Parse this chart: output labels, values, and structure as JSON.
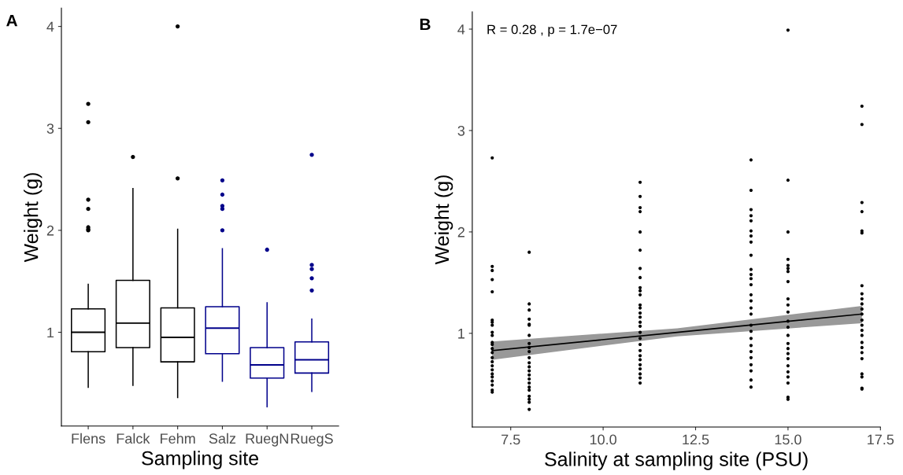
{
  "chart_data": [
    {
      "type": "box",
      "title": "A",
      "xlabel": "Sampling site",
      "ylabel": "Weight (g)",
      "categories": [
        "Flens",
        "Falck",
        "Fehm",
        "Salz",
        "RuegN",
        "RuegS"
      ],
      "colors": [
        "#000000",
        "#000000",
        "#000000",
        "#00008b",
        "#00008b",
        "#00008b"
      ],
      "boxes": [
        {
          "low": 0.46,
          "q1": 0.81,
          "median": 1.0,
          "q3": 1.23,
          "high": 1.47,
          "outliers": [
            3.24,
            3.06,
            2.3,
            2.21,
            2.03,
            2.01,
            2.0
          ]
        },
        {
          "low": 0.48,
          "q1": 0.85,
          "median": 1.09,
          "q3": 1.51,
          "high": 2.41,
          "outliers": [
            2.72
          ]
        },
        {
          "low": 0.36,
          "q1": 0.71,
          "median": 0.95,
          "q3": 1.24,
          "high": 2.01,
          "outliers": [
            4.0,
            2.51
          ]
        },
        {
          "low": 0.52,
          "q1": 0.79,
          "median": 1.04,
          "q3": 1.25,
          "high": 1.82,
          "outliers": [
            2.49,
            2.35,
            2.24,
            2.21,
            2.0
          ]
        },
        {
          "low": 0.27,
          "q1": 0.55,
          "median": 0.68,
          "q3": 0.85,
          "high": 1.29,
          "outliers": [
            1.81
          ]
        },
        {
          "low": 0.42,
          "q1": 0.6,
          "median": 0.73,
          "q3": 0.905,
          "high": 1.13,
          "outliers": [
            2.74,
            1.66,
            1.62,
            1.53,
            1.41
          ]
        }
      ],
      "ylim": [
        0.08,
        4.18
      ],
      "yticks": [
        1,
        2,
        3,
        4
      ],
      "grid": false,
      "legend": false
    },
    {
      "type": "scatter",
      "title": "B",
      "xlabel": "Salinity at sampling site (PSU)",
      "ylabel": "Weight (g)",
      "annotations": [
        "R = 0.28 , p = 1.7e−07"
      ],
      "series": [
        {
          "type": "scatter",
          "color": "#000000",
          "marker": "circle",
          "x": [
            7,
            7,
            7,
            7,
            7,
            7,
            7,
            7,
            7,
            7,
            7,
            7,
            7,
            7,
            7,
            7,
            7,
            7,
            7,
            7,
            7,
            7,
            7,
            7,
            8,
            8,
            8,
            8,
            8,
            8,
            8,
            8,
            8,
            8,
            8,
            8,
            8,
            8,
            8,
            8,
            8,
            8,
            8,
            8,
            8,
            8,
            8,
            11,
            11,
            11,
            11,
            11,
            11,
            11,
            11,
            11,
            11,
            11,
            11,
            11,
            11,
            11,
            11,
            11,
            11,
            11,
            11,
            11,
            11,
            11,
            11,
            11,
            11,
            11,
            11,
            14,
            14,
            14,
            14,
            14,
            14,
            14,
            14,
            14,
            14,
            14,
            14,
            14,
            14,
            14,
            14,
            14,
            14,
            14,
            14,
            14,
            14,
            14,
            14,
            14,
            14,
            14,
            15,
            15,
            15,
            15,
            15,
            15,
            15,
            15,
            15,
            15,
            15,
            15,
            15,
            15,
            15,
            15,
            15,
            15,
            15,
            15,
            15,
            15,
            15,
            15,
            17,
            17,
            17,
            17,
            17,
            17,
            17,
            17,
            17,
            17,
            17,
            17,
            17,
            17,
            17,
            17,
            17,
            17,
            17,
            17,
            17,
            17,
            17,
            17
          ],
          "values": [
            2.73,
            1.66,
            1.62,
            1.53,
            1.41,
            1.13,
            1.11,
            1.08,
            1.01,
            0.98,
            0.91,
            0.89,
            0.85,
            0.81,
            0.76,
            0.72,
            0.68,
            0.64,
            0.6,
            0.57,
            0.53,
            0.49,
            0.44,
            0.42,
            1.8,
            1.29,
            1.23,
            1.14,
            1.09,
            1.08,
            0.98,
            0.9,
            0.86,
            0.82,
            0.76,
            0.71,
            0.67,
            0.63,
            0.59,
            0.55,
            0.51,
            0.47,
            0.44,
            0.38,
            0.35,
            0.32,
            0.25,
            2.49,
            2.35,
            2.24,
            2.2,
            2.0,
            1.82,
            1.64,
            1.55,
            1.45,
            1.42,
            1.38,
            1.28,
            1.25,
            1.2,
            1.16,
            1.11,
            1.07,
            1.01,
            0.95,
            0.89,
            0.83,
            0.78,
            0.74,
            0.69,
            0.65,
            0.6,
            0.56,
            0.51,
            2.71,
            2.41,
            2.22,
            2.16,
            2.11,
            2.01,
            1.96,
            1.9,
            1.77,
            1.63,
            1.58,
            1.54,
            1.48,
            1.38,
            1.32,
            1.25,
            1.19,
            1.08,
            1.02,
            0.95,
            0.88,
            0.82,
            0.76,
            0.69,
            0.63,
            0.54,
            0.47,
            3.99,
            2.51,
            2.0,
            1.73,
            1.67,
            1.64,
            1.61,
            1.51,
            1.34,
            1.28,
            1.21,
            1.12,
            1.06,
            0.98,
            0.9,
            0.85,
            0.8,
            0.75,
            0.68,
            0.62,
            0.57,
            0.51,
            0.37,
            0.35,
            3.24,
            3.06,
            2.29,
            2.2,
            2.01,
            1.99,
            1.47,
            1.39,
            1.34,
            1.29,
            1.24,
            1.19,
            1.13,
            1.08,
            1.03,
            0.98,
            0.91,
            0.86,
            0.81,
            0.75,
            0.6,
            0.57,
            0.46,
            0.45
          ]
        },
        {
          "type": "line",
          "color": "#000000",
          "x": [
            7,
            12,
            17
          ],
          "values": [
            0.83,
            1.01,
            1.19
          ],
          "lower": [
            0.74,
            0.97,
            1.1
          ],
          "upper": [
            0.92,
            1.05,
            1.27
          ]
        }
      ],
      "xlim": [
        6.46,
        17.5
      ],
      "xticks": [
        {
          "value": 7.5,
          "label": "7.5"
        },
        {
          "value": 10,
          "label": "10.0"
        },
        {
          "value": 12.5,
          "label": "12.5"
        },
        {
          "value": 15,
          "label": "15.0"
        },
        {
          "value": 17.5,
          "label": "17.5"
        }
      ],
      "ylim": [
        0.076,
        4.17
      ],
      "yticks": [
        1,
        2,
        3,
        4
      ],
      "grid": false,
      "legend": false
    }
  ]
}
